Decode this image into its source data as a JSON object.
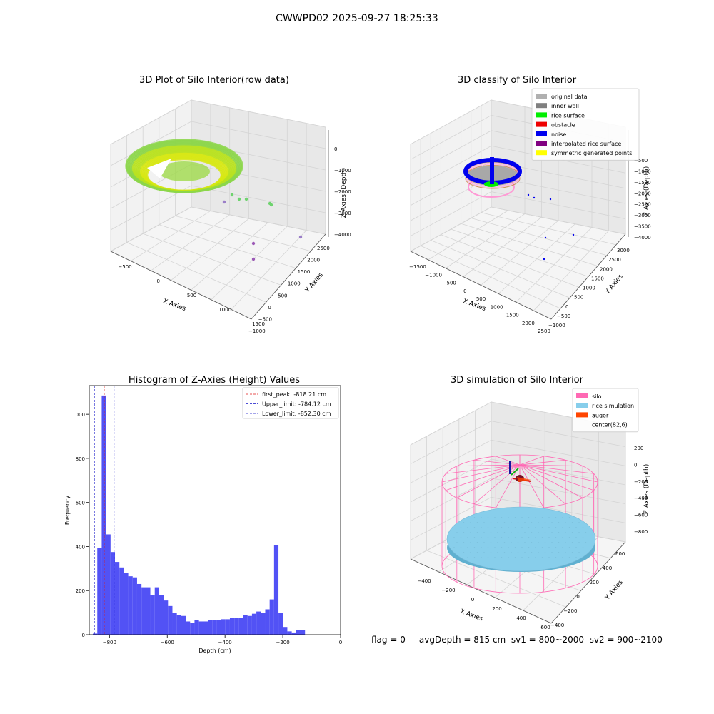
{
  "figure_title": "CWWPD02 2025-09-27 18:25:33",
  "footer_text": "flag = 0     avgDepth = 815 cm  sv1 = 800~2000  sv2 = 900~2100",
  "colors": {
    "hist_bar": "#5252f5",
    "first_peak_line": "#e01919",
    "limit_line": "#1111c8",
    "silo": "#ff69b4",
    "rice_sim": "#87ceeb",
    "auger": "#ff4500",
    "rice_surface": "#00ee00",
    "noise": "#0000ee",
    "inner_wall": "#808080",
    "original": "#b0b0b0",
    "interp_surface": "#800080",
    "symmetric": "#ffff00",
    "raw_scatter": "#c6e80e"
  },
  "chart_data": [
    {
      "type": "scatter",
      "title": "3D Plot of Silo Interior(row data)",
      "xlabel": "X Axies",
      "ylabel": "Y Axies",
      "zlabel": "Z Axies (Depth)",
      "x_ticks": [
        "−500",
        "0",
        "500",
        "1000",
        "1500"
      ],
      "y_ticks": [
        "−1000",
        "−500",
        "0",
        "500",
        "1000",
        "1500",
        "2000",
        "2500"
      ],
      "z_ticks": [
        "0",
        "−1000",
        "−2000",
        "−3000",
        "−4000"
      ],
      "grid": true
    },
    {
      "type": "scatter",
      "title": "3D classify of Silo Interior",
      "xlabel": "X Axies",
      "ylabel": "Y Axies",
      "zlabel": "Z Axies (Depth)",
      "x_ticks": [
        "−1500",
        "−1000",
        "−500",
        "0",
        "500",
        "1000",
        "1500",
        "2000",
        "2500"
      ],
      "y_ticks": [
        "−1000",
        "−500",
        "0",
        "500",
        "1000",
        "1500",
        "2000",
        "2500",
        "3000"
      ],
      "z_ticks": [
        "−500",
        "−1000",
        "−1500",
        "−2000",
        "−2500",
        "−3000",
        "−3500",
        "−4000"
      ],
      "legend_position": "top-right",
      "legend": [
        {
          "label": "original data",
          "color": "#b0b0b0"
        },
        {
          "label": "inner wall",
          "color": "#808080"
        },
        {
          "label": "rice surface",
          "color": "#00ee00"
        },
        {
          "label": "obstacle",
          "color": "#ee0000"
        },
        {
          "label": "noise",
          "color": "#0000ee"
        },
        {
          "label": "interpolated rice surface",
          "color": "#800080"
        },
        {
          "label": "symmetric generated points",
          "color": "#ffff00"
        }
      ],
      "grid": true
    },
    {
      "type": "bar",
      "title": "Histogram of Z-Axies (Height) Values",
      "xlabel": "Depth (cm)",
      "ylabel": "Frequency",
      "xlim": [
        -870,
        0
      ],
      "ylim": [
        0,
        1130
      ],
      "x_ticks": [
        -800,
        -600,
        -400,
        -200,
        0
      ],
      "x_tick_labels": [
        "−800",
        "−600",
        "−400",
        "−200",
        "0"
      ],
      "y_ticks": [
        0,
        200,
        400,
        600,
        800,
        1000
      ],
      "y_tick_labels": [
        "0",
        "200",
        "400",
        "600",
        "800",
        "1000"
      ],
      "bin_start": -857.5,
      "bin_width": 15.3,
      "values": [
        5,
        395,
        1085,
        455,
        375,
        330,
        305,
        280,
        265,
        260,
        230,
        215,
        215,
        180,
        215,
        180,
        155,
        130,
        100,
        90,
        85,
        60,
        55,
        65,
        60,
        60,
        65,
        65,
        65,
        70,
        70,
        75,
        75,
        75,
        90,
        85,
        95,
        105,
        100,
        115,
        160,
        405,
        100,
        35,
        15,
        10,
        20,
        20
      ],
      "vlines": [
        {
          "label": "first_peak: -818.21 cm",
          "value": -818.21,
          "color": "#e01919"
        },
        {
          "label": "Upper_limit: -784.12 cm",
          "value": -784.12,
          "color": "#1111c8"
        },
        {
          "label": "Lower_limit: -852.30 cm",
          "value": -852.3,
          "color": "#1111c8"
        }
      ],
      "legend_position": "top-right"
    },
    {
      "type": "scatter",
      "title": "3D simulation of Silo Interior",
      "xlabel": "X Axies",
      "ylabel": "Y Axies",
      "zlabel": "Z Axies (Depth)",
      "x_ticks": [
        "−400",
        "−200",
        "0",
        "200",
        "400",
        "600"
      ],
      "y_ticks": [
        "−400",
        "−200",
        "0",
        "200",
        "400",
        "600"
      ],
      "z_ticks": [
        "200",
        "0",
        "−200",
        "−400",
        "−600",
        "−800"
      ],
      "legend_position": "top-right",
      "legend": [
        {
          "label": "silo",
          "color": "#ff69b4"
        },
        {
          "label": "rice simulation",
          "color": "#87ceeb"
        },
        {
          "label": "auger",
          "color": "#ff4500"
        },
        {
          "label": "center(82,6)",
          "color": ""
        }
      ],
      "grid": true
    }
  ]
}
